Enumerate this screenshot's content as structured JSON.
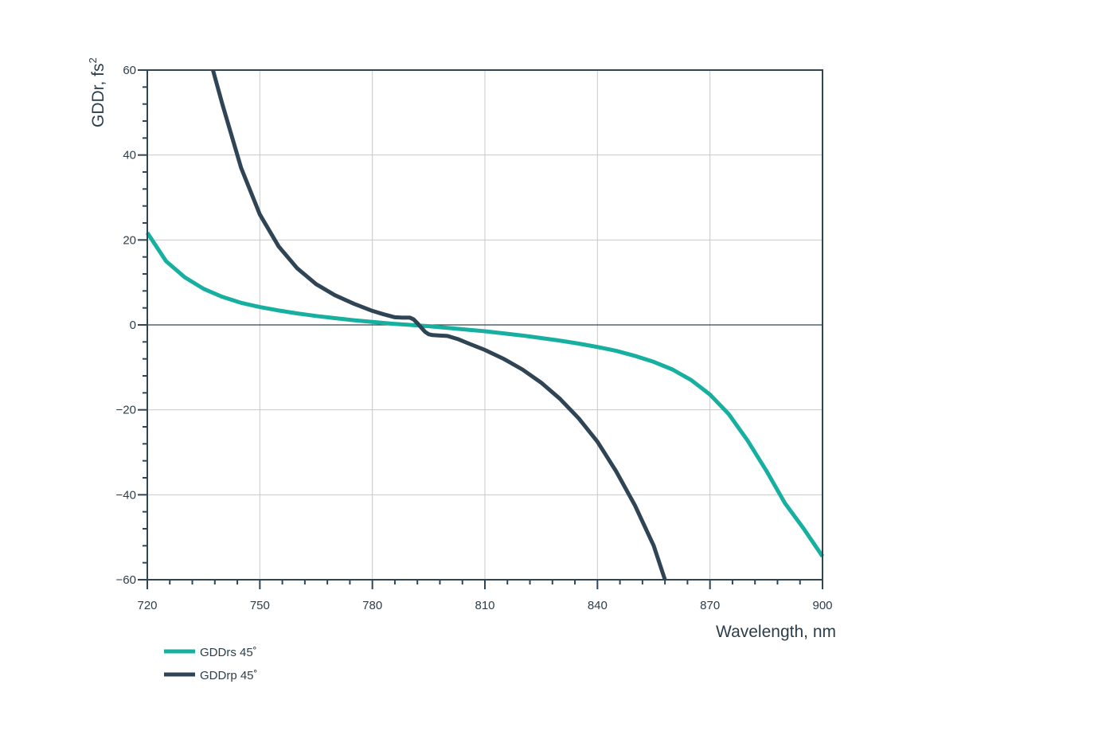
{
  "chart_data": {
    "type": "line",
    "title": "",
    "xlabel": "Wavelength, nm",
    "ylabel": "GDDr, fs",
    "ylabel_superscript": "2",
    "xlim": [
      720,
      900
    ],
    "ylim": [
      -60,
      60
    ],
    "x_ticks": [
      720,
      750,
      780,
      810,
      840,
      870,
      900
    ],
    "x_tick_labels": [
      "720",
      "750",
      "780",
      "810",
      "840",
      "870",
      "900"
    ],
    "y_ticks": [
      60,
      40,
      20,
      0,
      -20,
      -40,
      -60
    ],
    "y_tick_labels": [
      "60",
      "40",
      "20",
      "0",
      "−20",
      "−40",
      "−60"
    ],
    "grid": true,
    "legend_position": "bottom-left",
    "series": [
      {
        "name": "GDDrs 45˚",
        "color": "#17b0a0",
        "x": [
          720,
          725,
          730,
          735,
          740,
          745,
          750,
          755,
          760,
          765,
          770,
          775,
          780,
          785,
          790,
          795,
          800,
          805,
          810,
          815,
          820,
          825,
          830,
          835,
          840,
          845,
          850,
          855,
          860,
          865,
          870,
          875,
          880,
          885,
          890,
          895,
          900
        ],
        "y": [
          21.7,
          15,
          11.2,
          8.5,
          6.6,
          5.2,
          4.2,
          3.4,
          2.7,
          2.1,
          1.6,
          1.1,
          0.7,
          0.3,
          0,
          -0.3,
          -0.7,
          -1.1,
          -1.5,
          -2,
          -2.5,
          -3.1,
          -3.7,
          -4.4,
          -5.2,
          -6.1,
          -7.3,
          -8.7,
          -10.5,
          -13,
          -16.4,
          -21,
          -27.2,
          -34.3,
          -42,
          -48,
          -54.5
        ]
      },
      {
        "name": "GDDrp 45˚",
        "color": "#2f4555",
        "x": [
          737.5,
          740,
          745,
          750,
          755,
          760,
          765,
          770,
          775,
          780,
          783,
          786,
          788,
          790,
          791,
          792,
          793,
          794,
          795,
          796,
          798,
          800,
          803,
          806,
          810,
          815,
          820,
          825,
          830,
          835,
          840,
          845,
          850,
          855,
          858
        ],
        "y": [
          60,
          52,
          37,
          26,
          18.5,
          13.3,
          9.6,
          7,
          5,
          3.3,
          2.5,
          1.8,
          1.7,
          1.7,
          1.3,
          0.4,
          -0.6,
          -1.6,
          -2.2,
          -2.4,
          -2.5,
          -2.6,
          -3.4,
          -4.5,
          -5.9,
          -8,
          -10.5,
          -13.6,
          -17.4,
          -22,
          -27.5,
          -34.5,
          -42.5,
          -52,
          -60
        ]
      }
    ]
  }
}
